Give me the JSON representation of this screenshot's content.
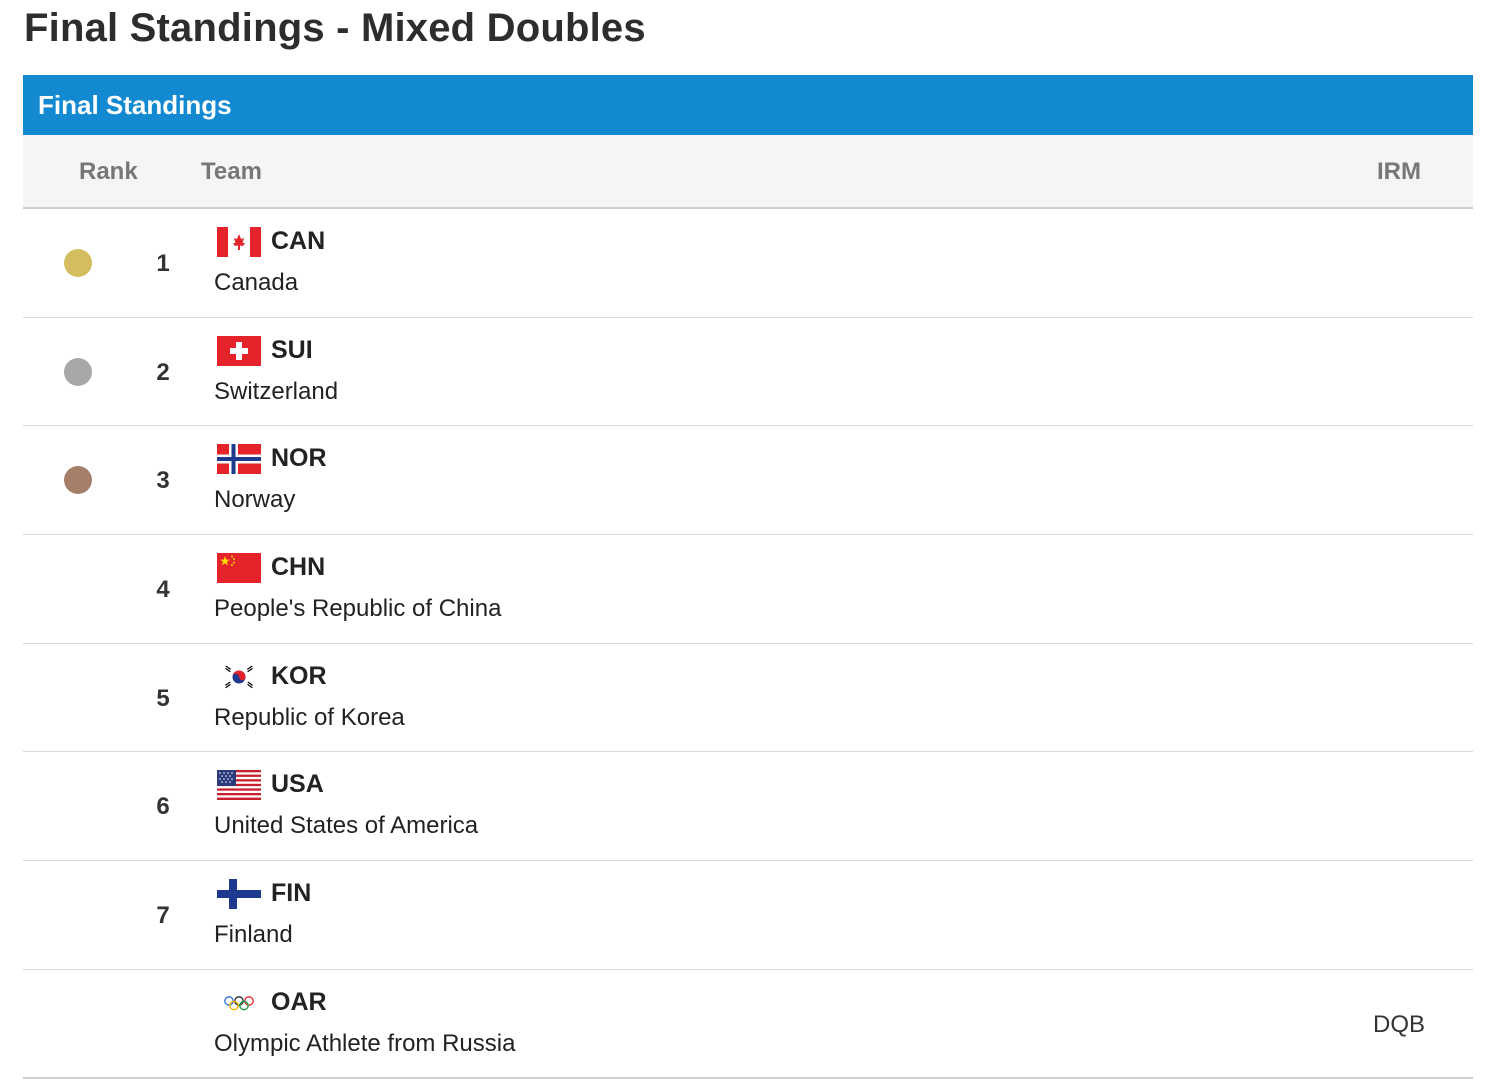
{
  "page_title": "Final Standings - Mixed Doubles",
  "panel_title": "Final Standings",
  "columns": {
    "rank": "Rank",
    "team": "Team",
    "irm": "IRM"
  },
  "colors": {
    "header_bg": "#1389d1",
    "gold": "#d4bd5f",
    "silver": "#a8a8a8",
    "bronze": "#a57f69"
  },
  "rows": [
    {
      "medal": "gold",
      "rank": "1",
      "code": "CAN",
      "country": "Canada",
      "flag": "canada-flag-icon",
      "irm": ""
    },
    {
      "medal": "silver",
      "rank": "2",
      "code": "SUI",
      "country": "Switzerland",
      "flag": "switzerland-flag-icon",
      "irm": ""
    },
    {
      "medal": "bronze",
      "rank": "3",
      "code": "NOR",
      "country": "Norway",
      "flag": "norway-flag-icon",
      "irm": ""
    },
    {
      "medal": "",
      "rank": "4",
      "code": "CHN",
      "country": "People's Republic of China",
      "flag": "china-flag-icon",
      "irm": ""
    },
    {
      "medal": "",
      "rank": "5",
      "code": "KOR",
      "country": "Republic of Korea",
      "flag": "korea-flag-icon",
      "irm": ""
    },
    {
      "medal": "",
      "rank": "6",
      "code": "USA",
      "country": "United States of America",
      "flag": "usa-flag-icon",
      "irm": ""
    },
    {
      "medal": "",
      "rank": "7",
      "code": "FIN",
      "country": "Finland",
      "flag": "finland-flag-icon",
      "irm": ""
    },
    {
      "medal": "",
      "rank": "",
      "code": "OAR",
      "country": "Olympic Athlete from Russia",
      "flag": "olympic-rings-flag-icon",
      "irm": "DQB"
    }
  ]
}
